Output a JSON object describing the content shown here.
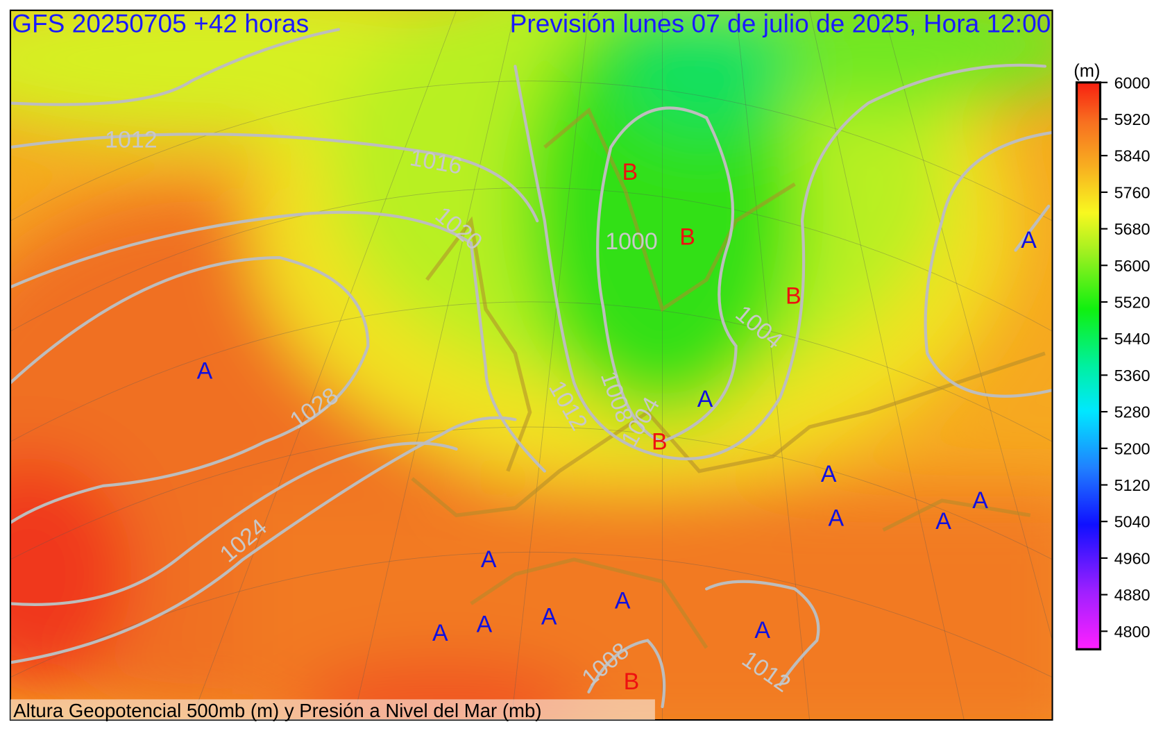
{
  "header": {
    "left": "GFS 20250705 +42 horas",
    "right": "Previsión lunes 07 de julio de 2025, Hora 12:00"
  },
  "footer": "Altura Geopotencial 500mb (m)  y Presión a Nivel del Mar (mb)",
  "colorbar": {
    "unit": "(m)",
    "labels": [
      6000,
      5920,
      5840,
      5760,
      5680,
      5600,
      5520,
      5440,
      5360,
      5280,
      5200,
      5120,
      5040,
      4960,
      4880,
      4800
    ]
  },
  "isobar_labels": [
    "1012",
    "1016",
    "1020",
    "1028",
    "1024",
    "1000",
    "1004",
    "1012",
    "1008",
    "1004",
    "1008",
    "1012"
  ],
  "centers": [
    "B",
    "B",
    "B",
    "A",
    "A",
    "B",
    "A",
    "A",
    "A",
    "A",
    "A",
    "A",
    "A",
    "A",
    "A",
    "A",
    "A",
    "B"
  ]
}
